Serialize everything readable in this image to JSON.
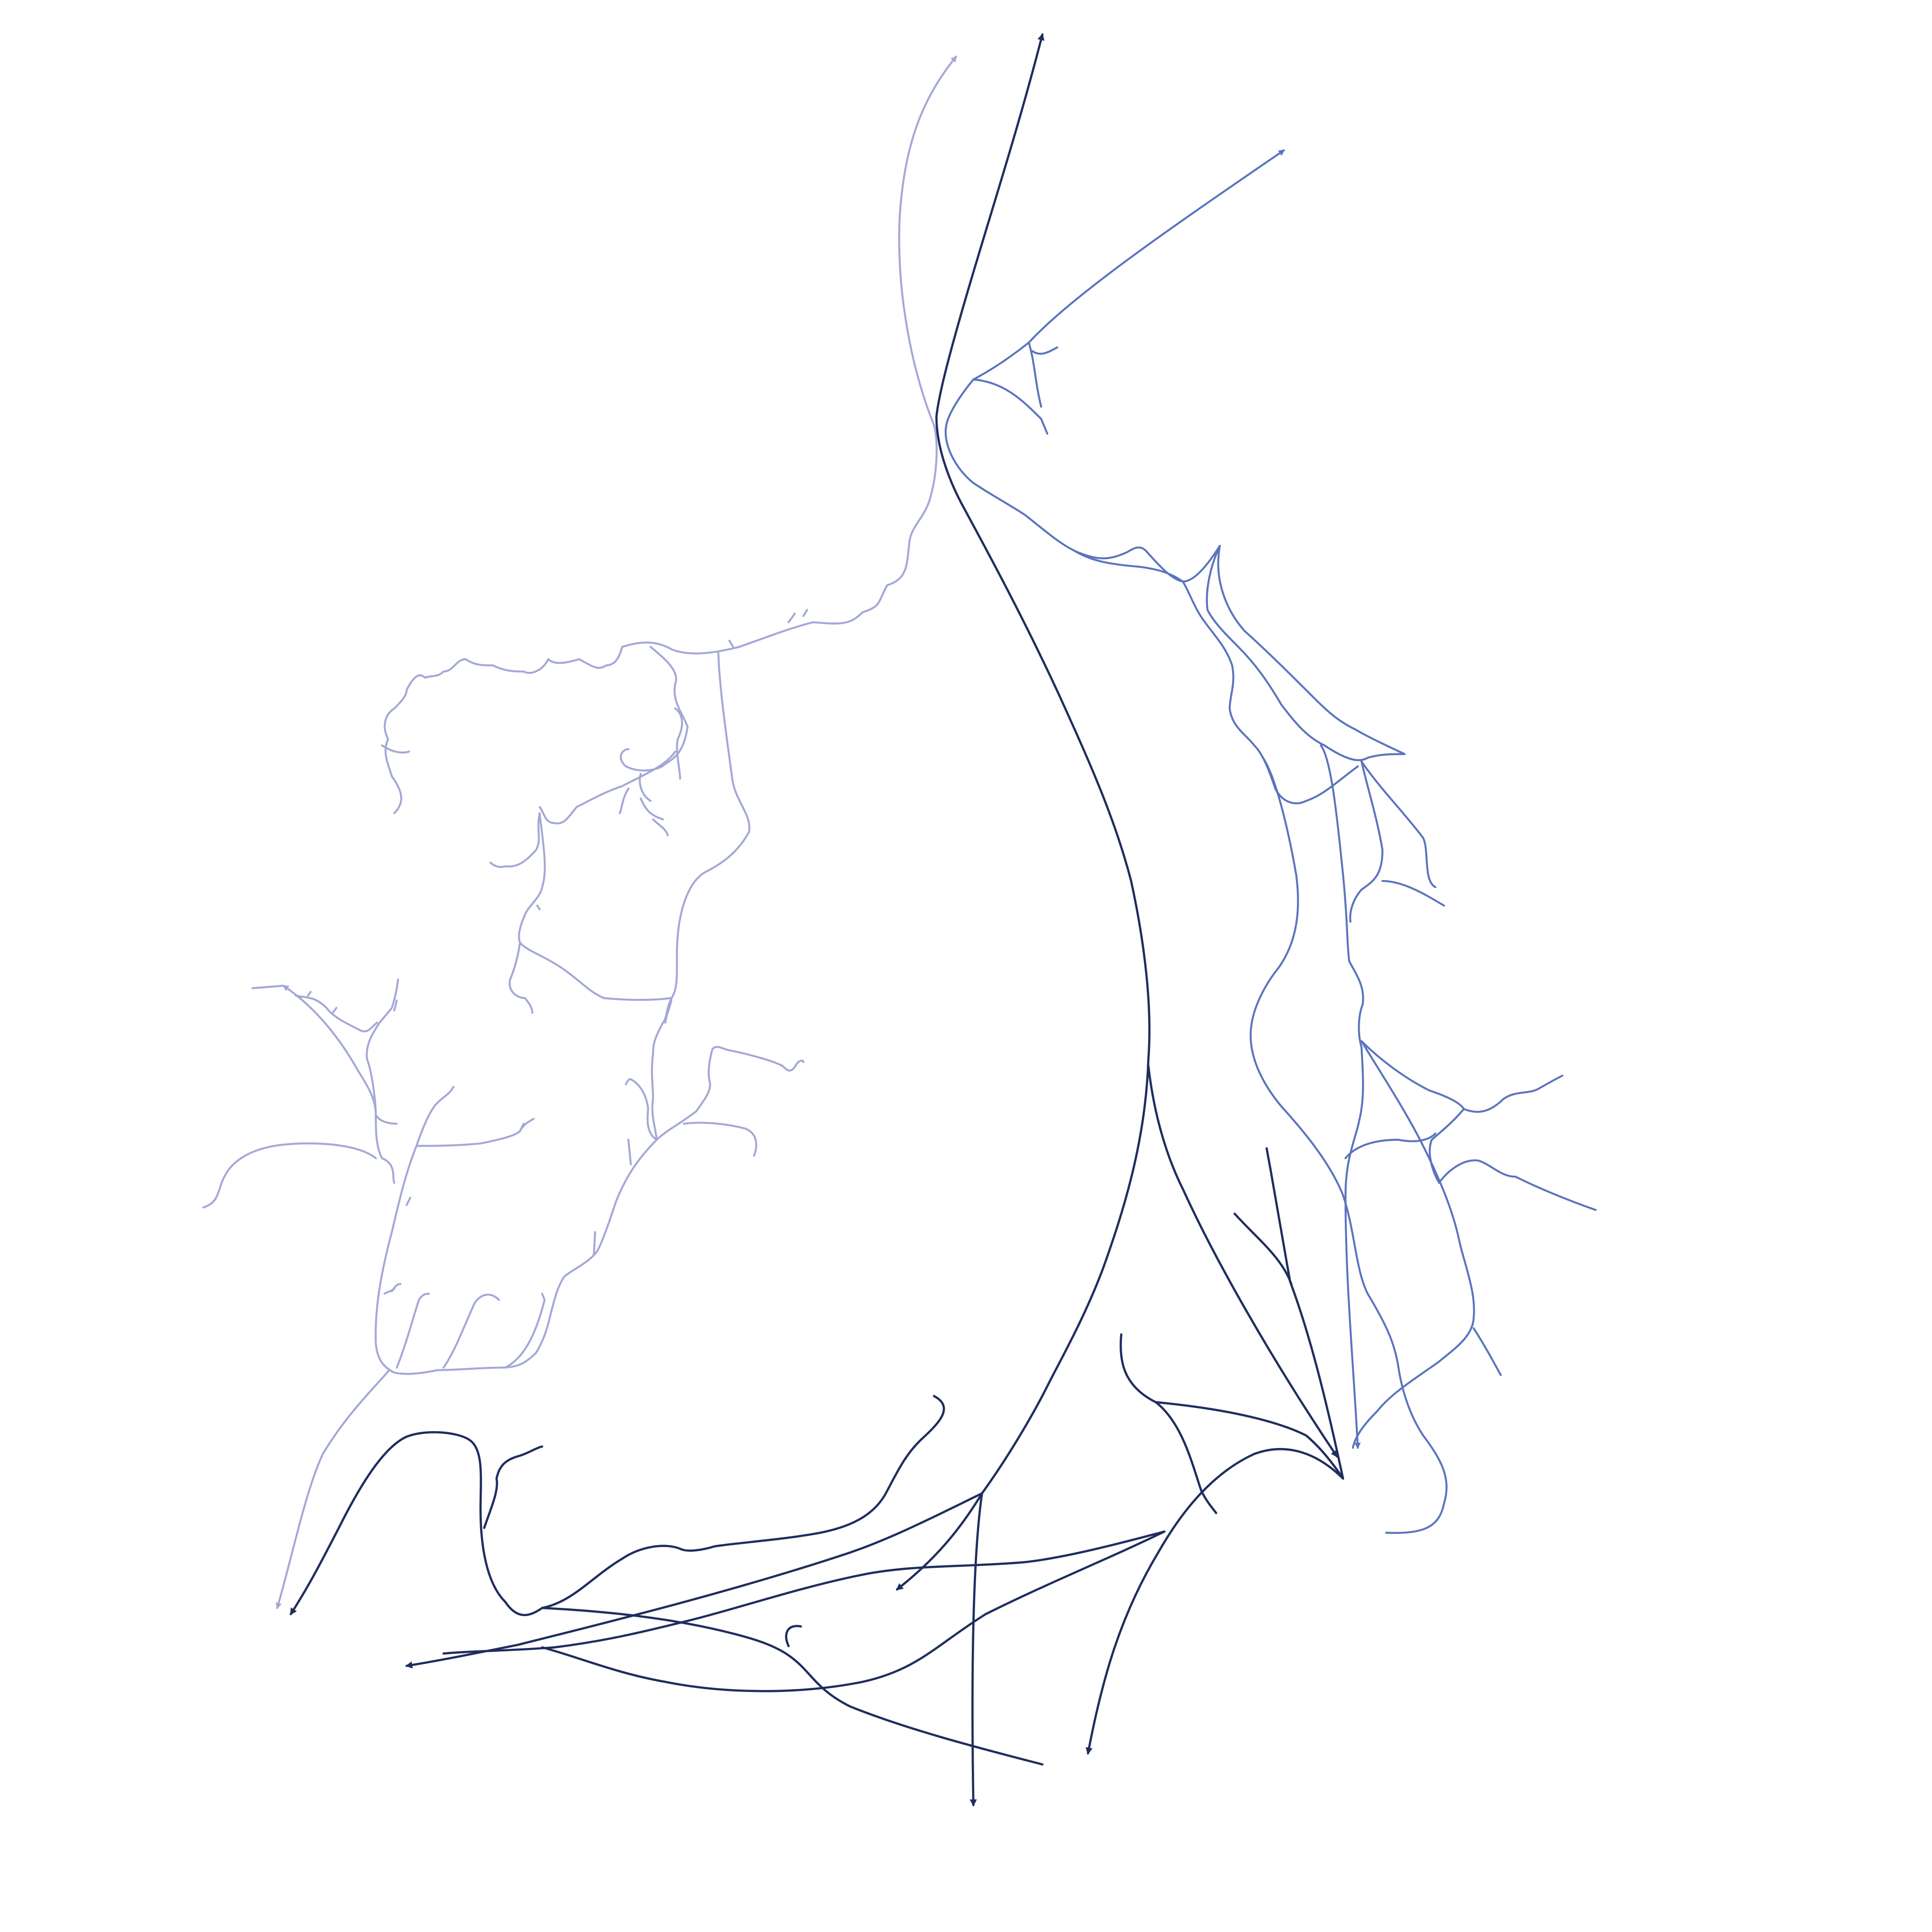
{
  "diagram": {
    "type": "flow-tree",
    "labels": [],
    "colors": {
      "background": "#ffffff",
      "light": "#a3a8d6",
      "medium": "#5b74bd",
      "dark": "#1f2d5f"
    },
    "flows": [
      {
        "name": "flow-light",
        "color_key": "light",
        "arrowheads": 3
      },
      {
        "name": "flow-medium",
        "color_key": "medium",
        "arrowheads": 2
      },
      {
        "name": "flow-dark",
        "color_key": "dark",
        "arrowheads": 6
      }
    ]
  }
}
